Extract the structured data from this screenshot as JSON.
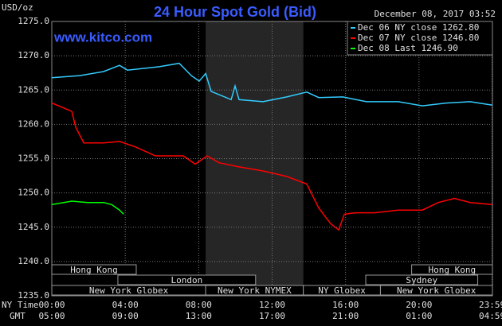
{
  "chart_data": {
    "type": "line",
    "title": "24 Hour Spot Gold (Bid)",
    "website": "www.kitco.com",
    "y_unit": "USD/oz",
    "timestamp": "December 08, 2017 03:52",
    "x_row_label": "NY Time",
    "gmt_row_label": "GMT",
    "xlim": [
      0,
      24
    ],
    "xticks": [
      {
        "value": 0,
        "label": "00:00"
      },
      {
        "value": 4,
        "label": "04:00"
      },
      {
        "value": 8,
        "label": "08:00"
      },
      {
        "value": 12,
        "label": "12:00"
      },
      {
        "value": 16,
        "label": "16:00"
      },
      {
        "value": 20,
        "label": "20:00"
      },
      {
        "value": 23.98,
        "label": "23:59"
      }
    ],
    "gmt_labels": [
      "05:00",
      "09:00",
      "13:00",
      "17:00",
      "21:00",
      "01:00",
      "04:59"
    ],
    "ylim": [
      1235,
      1275
    ],
    "yticks": [
      {
        "value": 1235,
        "label": "1235.0"
      },
      {
        "value": 1240,
        "label": "1240.0"
      },
      {
        "value": 1245,
        "label": "1245.0"
      },
      {
        "value": 1250,
        "label": "1250.0"
      },
      {
        "value": 1255,
        "label": "1255.0"
      },
      {
        "value": 1260,
        "label": "1260.0"
      },
      {
        "value": 1265,
        "label": "1265.0"
      },
      {
        "value": 1270,
        "label": "1270.0"
      },
      {
        "value": 1275,
        "label": "1275.0"
      }
    ],
    "grid": true,
    "legend": "upper right",
    "shaded_span": {
      "start": 8.38,
      "end": 13.7
    },
    "session_rows": [
      [
        {
          "label": "Hong Kong",
          "start": 0,
          "end": 4.6
        },
        {
          "label": "Hong Kong",
          "start": 19.6,
          "end": 24
        }
      ],
      [
        {
          "label": "London",
          "start": 3.6,
          "end": 11.1
        },
        {
          "label": "Sydney",
          "start": 17.1,
          "end": 23.2
        }
      ],
      [
        {
          "label": "New York Globex",
          "start": 0,
          "end": 8.38
        },
        {
          "label": "New York NYMEX",
          "start": 8.38,
          "end": 13.7
        },
        {
          "label": "NY Globex",
          "start": 13.7,
          "end": 17.9
        },
        {
          "label": "New York Globex",
          "start": 17.9,
          "end": 24
        }
      ]
    ],
    "series": [
      {
        "name": "Dec 06 NY close 1262.80",
        "color": "#33ccff",
        "x": [
          0,
          1.52,
          2.82,
          3.69,
          4.12,
          5.86,
          6.94,
          7.6,
          8.03,
          8.38,
          8.68,
          9.77,
          9.98,
          10.2,
          11.5,
          12.8,
          13.89,
          14.54,
          15.84,
          17.14,
          18.88,
          20.18,
          21.48,
          22.79,
          24
        ],
        "values": [
          1266.8,
          1267.1,
          1267.7,
          1268.6,
          1267.9,
          1268.4,
          1268.9,
          1267.1,
          1266.3,
          1267.4,
          1264.8,
          1263.6,
          1265.6,
          1263.6,
          1263.3,
          1264.0,
          1264.7,
          1263.9,
          1264.0,
          1263.3,
          1263.3,
          1262.7,
          1263.1,
          1263.3,
          1262.8
        ]
      },
      {
        "name": "Dec 07 NY close 1246.80",
        "color": "#ff0000",
        "x": [
          0,
          1.09,
          1.3,
          1.74,
          2.82,
          3.69,
          4.56,
          5.64,
          7.16,
          7.81,
          8.46,
          9.11,
          10.2,
          11.5,
          12.8,
          13.89,
          14.54,
          15.19,
          15.63,
          15.93,
          16.5,
          17.58,
          18.88,
          20.18,
          21.05,
          21.92,
          22.79,
          24
        ],
        "values": [
          1263.1,
          1261.9,
          1259.6,
          1257.3,
          1257.3,
          1257.5,
          1256.7,
          1255.4,
          1255.4,
          1254.2,
          1255.4,
          1254.4,
          1253.8,
          1253.2,
          1252.4,
          1251.3,
          1247.8,
          1245.5,
          1244.6,
          1246.9,
          1247.1,
          1247.1,
          1247.5,
          1247.5,
          1248.6,
          1249.2,
          1248.6,
          1248.3
        ]
      },
      {
        "name": "Dec 08 Last 1246.90",
        "color": "#00ff00",
        "x": [
          0,
          1.09,
          1.95,
          2.82,
          3.26,
          3.69,
          3.91
        ],
        "values": [
          1248.3,
          1248.8,
          1248.6,
          1248.6,
          1248.3,
          1247.5,
          1246.9
        ]
      }
    ]
  }
}
